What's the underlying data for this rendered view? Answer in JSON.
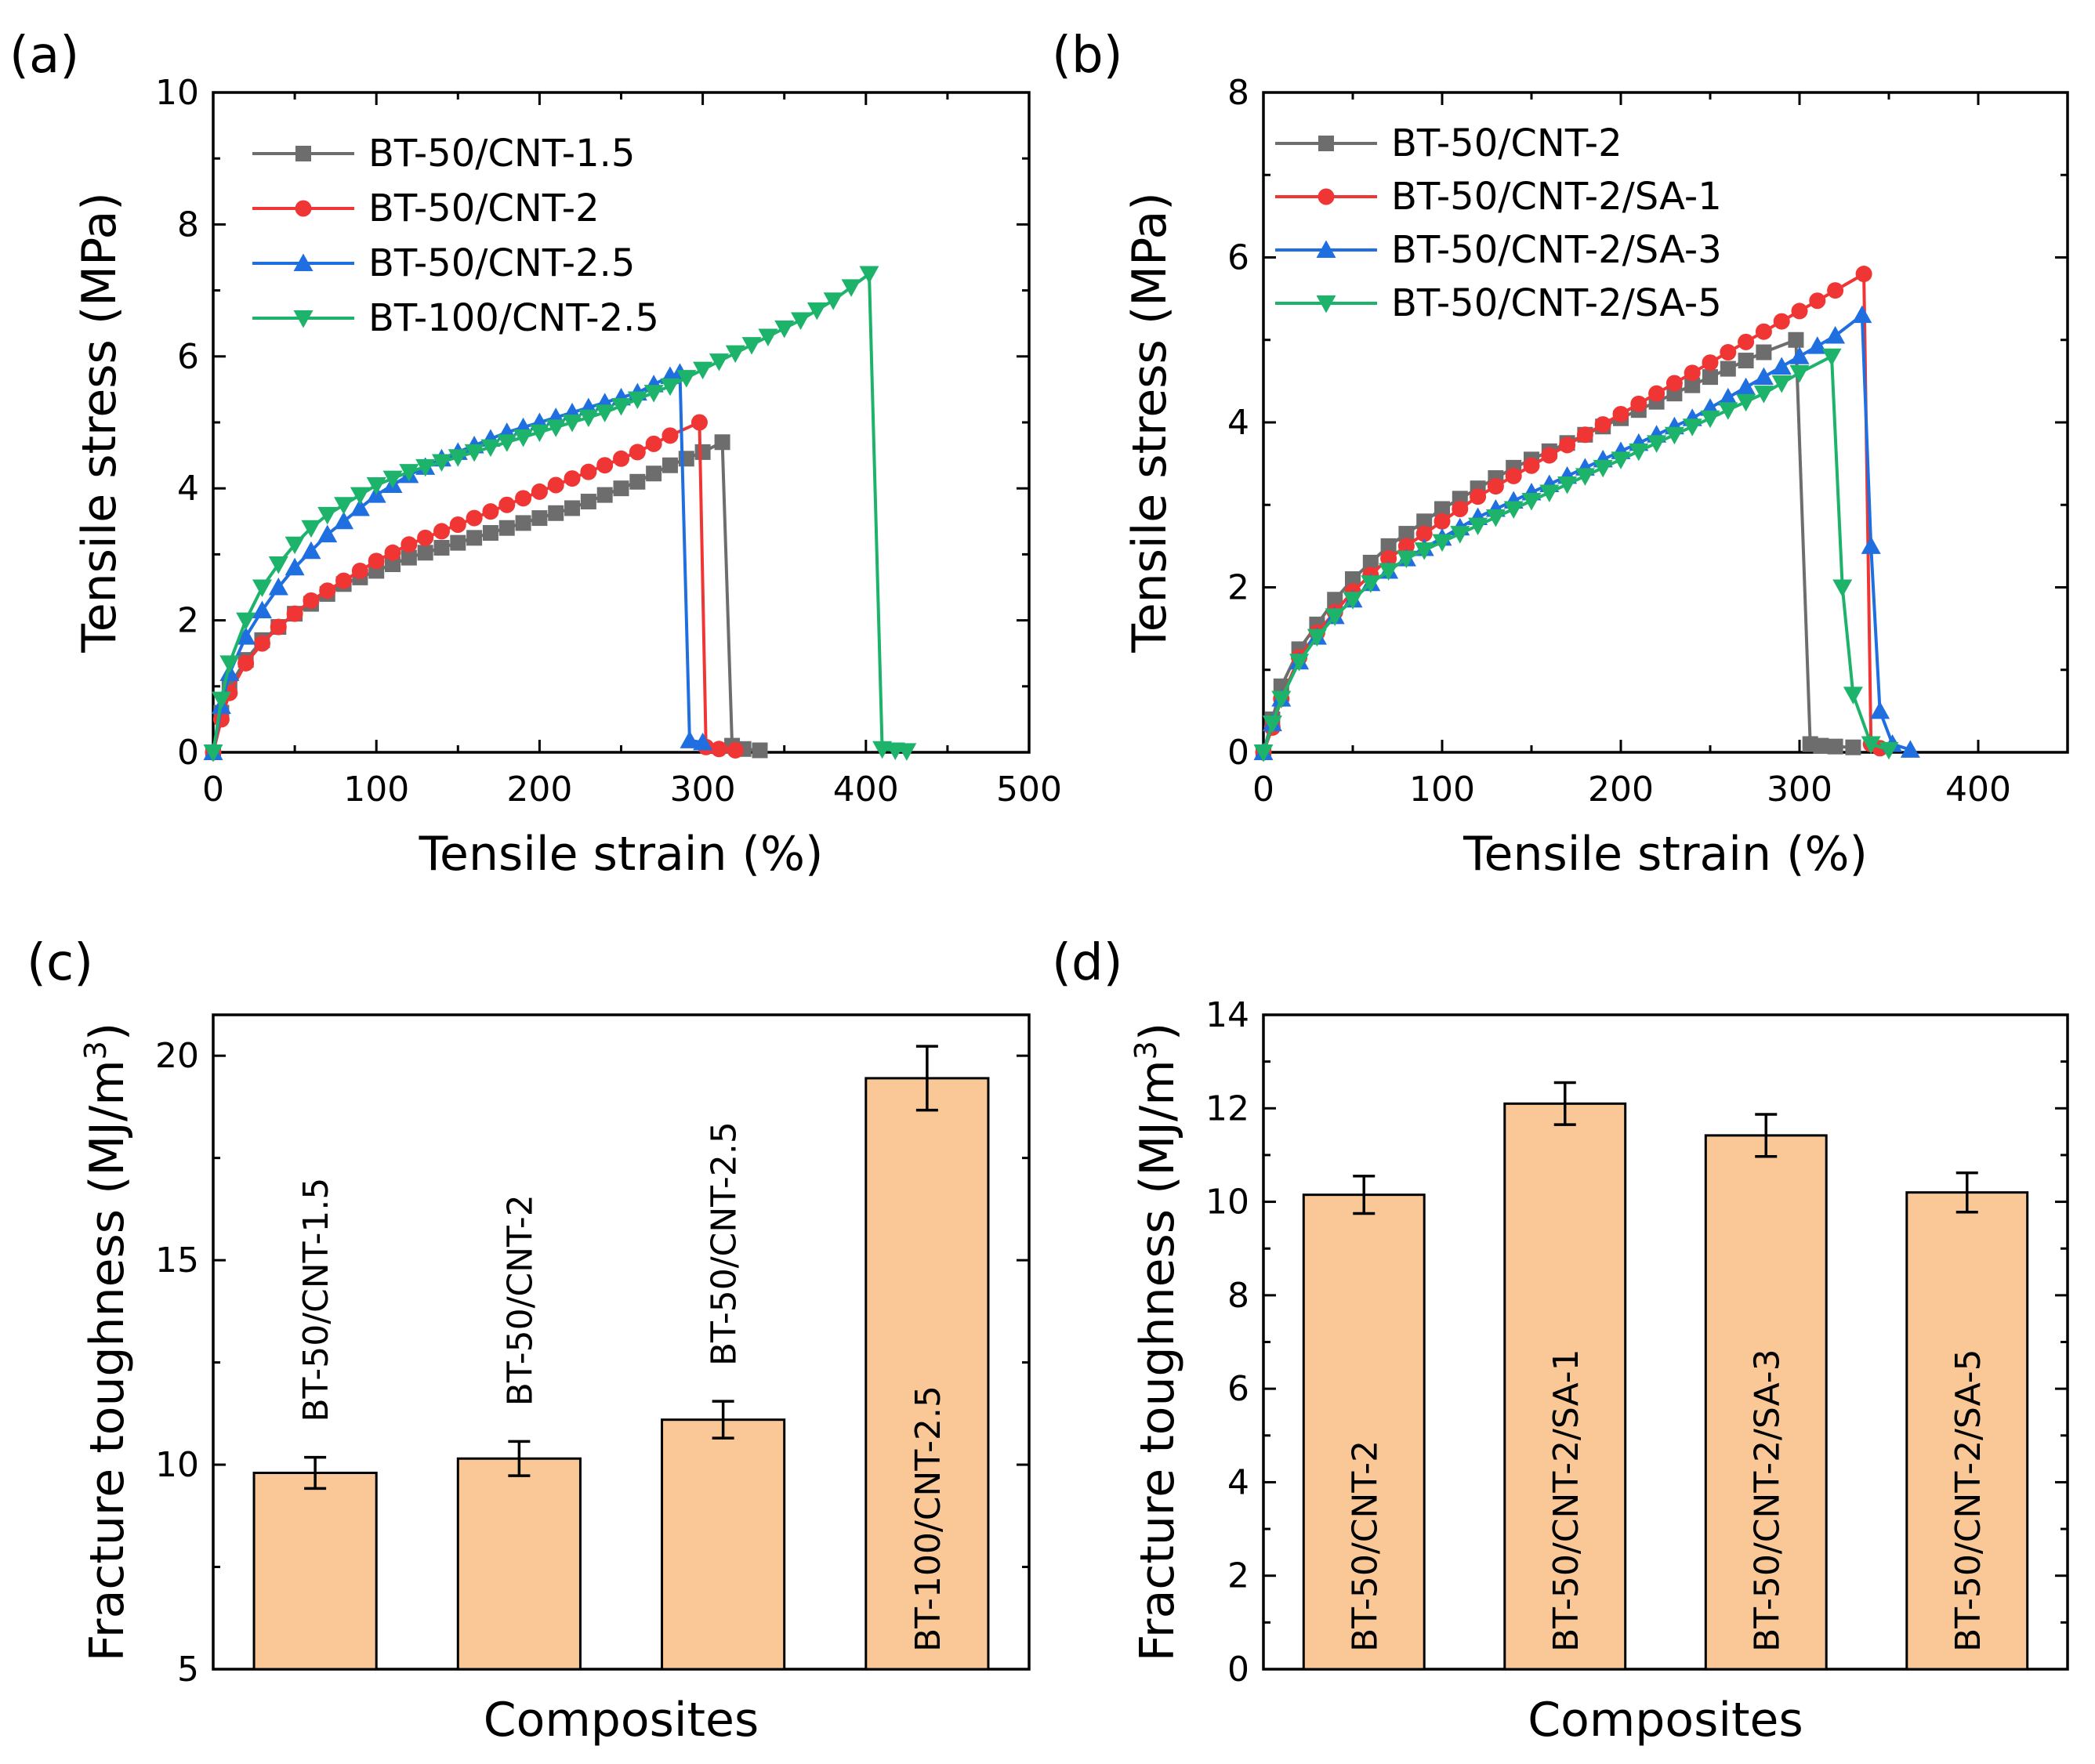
{
  "chart_data": [
    {
      "panel": "(a)",
      "type": "line",
      "xlabel": "Tensile strain (%)",
      "ylabel": "Tensile stress (MPa)",
      "xlim": [
        0,
        500
      ],
      "ylim": [
        0,
        10
      ],
      "xticks": [
        0,
        100,
        200,
        300,
        400,
        500
      ],
      "yticks": [
        0,
        2,
        4,
        6,
        8,
        10
      ],
      "grid": false,
      "legend_position": "top-left",
      "series": [
        {
          "name": "BT-50/CNT-1.5",
          "color": "#6d6d6d",
          "marker": "square",
          "x": [
            0,
            5,
            10,
            20,
            30,
            40,
            50,
            60,
            70,
            80,
            100,
            120,
            140,
            160,
            180,
            200,
            220,
            240,
            260,
            280,
            300,
            312,
            318,
            325,
            335
          ],
          "y": [
            0,
            0.6,
            1.0,
            1.4,
            1.7,
            1.9,
            2.1,
            2.25,
            2.4,
            2.55,
            2.75,
            2.95,
            3.1,
            3.25,
            3.4,
            3.55,
            3.7,
            3.9,
            4.1,
            4.35,
            4.55,
            4.7,
            0.1,
            0.05,
            0.03
          ]
        },
        {
          "name": "BT-50/CNT-2",
          "color": "#f03535",
          "marker": "circle",
          "x": [
            0,
            5,
            10,
            20,
            30,
            40,
            50,
            60,
            70,
            80,
            100,
            120,
            140,
            160,
            180,
            200,
            220,
            240,
            260,
            280,
            298,
            302,
            310,
            320
          ],
          "y": [
            0,
            0.5,
            0.9,
            1.35,
            1.65,
            1.9,
            2.1,
            2.3,
            2.45,
            2.6,
            2.9,
            3.15,
            3.35,
            3.55,
            3.75,
            3.95,
            4.15,
            4.35,
            4.55,
            4.8,
            5.0,
            0.08,
            0.05,
            0.03
          ]
        },
        {
          "name": "BT-50/CNT-2.5",
          "color": "#1f6fe0",
          "marker": "triangle-up",
          "x": [
            0,
            5,
            10,
            20,
            30,
            40,
            50,
            60,
            70,
            80,
            100,
            120,
            140,
            160,
            180,
            200,
            220,
            240,
            260,
            280,
            286,
            292,
            300
          ],
          "y": [
            0,
            0.7,
            1.2,
            1.75,
            2.15,
            2.5,
            2.8,
            3.05,
            3.3,
            3.5,
            3.9,
            4.2,
            4.45,
            4.65,
            4.85,
            5.0,
            5.15,
            5.3,
            5.45,
            5.7,
            5.75,
            0.18,
            0.15
          ]
        },
        {
          "name": "BT-100/CNT-2.5",
          "color": "#1db36b",
          "marker": "triangle-down",
          "x": [
            0,
            5,
            10,
            20,
            30,
            40,
            50,
            60,
            70,
            80,
            100,
            120,
            140,
            160,
            180,
            200,
            220,
            240,
            260,
            280,
            300,
            320,
            340,
            360,
            380,
            402,
            410,
            418,
            425
          ],
          "y": [
            0,
            0.8,
            1.35,
            2.0,
            2.5,
            2.85,
            3.15,
            3.4,
            3.6,
            3.75,
            4.05,
            4.25,
            4.4,
            4.55,
            4.7,
            4.85,
            5.0,
            5.15,
            5.35,
            5.55,
            5.8,
            6.05,
            6.3,
            6.55,
            6.85,
            7.25,
            0.05,
            0.03,
            0.02
          ]
        }
      ]
    },
    {
      "panel": "(b)",
      "type": "line",
      "xlabel": "Tensile strain (%)",
      "ylabel": "Tensile stress (MPa)",
      "xlim": [
        0,
        450
      ],
      "ylim": [
        0,
        8
      ],
      "xticks": [
        0,
        100,
        200,
        300,
        400
      ],
      "yticks": [
        0,
        2,
        4,
        6,
        8
      ],
      "grid": false,
      "legend_position": "top-left",
      "series": [
        {
          "name": "BT-50/CNT-2",
          "color": "#6d6d6d",
          "marker": "square",
          "x": [
            0,
            5,
            10,
            20,
            30,
            40,
            50,
            60,
            70,
            80,
            100,
            120,
            140,
            160,
            180,
            200,
            220,
            240,
            260,
            280,
            298,
            306,
            312,
            320,
            330
          ],
          "y": [
            0,
            0.4,
            0.8,
            1.25,
            1.55,
            1.85,
            2.1,
            2.3,
            2.5,
            2.65,
            2.95,
            3.2,
            3.45,
            3.65,
            3.85,
            4.05,
            4.25,
            4.45,
            4.65,
            4.85,
            5.0,
            0.1,
            0.08,
            0.07,
            0.06
          ]
        },
        {
          "name": "BT-50/CNT-2/SA-1",
          "color": "#f03535",
          "marker": "circle",
          "x": [
            0,
            5,
            10,
            20,
            30,
            40,
            50,
            60,
            70,
            80,
            100,
            120,
            140,
            160,
            180,
            200,
            220,
            240,
            260,
            280,
            300,
            320,
            336,
            340,
            345
          ],
          "y": [
            0,
            0.3,
            0.65,
            1.15,
            1.45,
            1.7,
            1.95,
            2.15,
            2.35,
            2.5,
            2.8,
            3.1,
            3.35,
            3.6,
            3.85,
            4.1,
            4.35,
            4.6,
            4.85,
            5.1,
            5.35,
            5.6,
            5.8,
            0.1,
            0.05
          ]
        },
        {
          "name": "BT-50/CNT-2/SA-3",
          "color": "#1f6fe0",
          "marker": "triangle-up",
          "x": [
            0,
            5,
            10,
            20,
            30,
            40,
            50,
            60,
            70,
            80,
            100,
            120,
            140,
            160,
            180,
            200,
            220,
            240,
            260,
            280,
            300,
            320,
            335,
            340,
            345,
            352,
            362
          ],
          "y": [
            0,
            0.35,
            0.65,
            1.1,
            1.4,
            1.65,
            1.85,
            2.05,
            2.2,
            2.35,
            2.6,
            2.85,
            3.05,
            3.25,
            3.45,
            3.65,
            3.85,
            4.05,
            4.3,
            4.55,
            4.8,
            5.05,
            5.3,
            2.5,
            0.5,
            0.1,
            0.03
          ]
        },
        {
          "name": "BT-50/CNT-2/SA-5",
          "color": "#1db36b",
          "marker": "triangle-down",
          "x": [
            0,
            5,
            10,
            20,
            30,
            40,
            50,
            60,
            70,
            80,
            100,
            120,
            140,
            160,
            180,
            200,
            220,
            240,
            260,
            280,
            300,
            318,
            324,
            330,
            340,
            350
          ],
          "y": [
            0,
            0.35,
            0.65,
            1.1,
            1.4,
            1.65,
            1.85,
            2.05,
            2.2,
            2.35,
            2.55,
            2.75,
            2.95,
            3.15,
            3.35,
            3.55,
            3.75,
            3.95,
            4.15,
            4.35,
            4.6,
            4.8,
            2.0,
            0.7,
            0.1,
            0.03
          ]
        }
      ]
    },
    {
      "panel": "(c)",
      "type": "bar",
      "xlabel": "Composites",
      "ylabel": "Fracture toughness (MJ/m",
      "ylabel_sup": "3",
      "ylabel_end": ")",
      "ylim": [
        5,
        21
      ],
      "yticks": [
        5,
        10,
        15,
        20
      ],
      "bar_color": "#fac897",
      "categories": [
        "BT-50/CNT-1.5",
        "BT-50/CNT-2",
        "BT-50/CNT-2.5",
        "BT-100/CNT-2.5"
      ],
      "values": [
        9.8,
        10.15,
        11.1,
        19.45
      ],
      "errors": [
        0.38,
        0.42,
        0.45,
        0.78
      ],
      "label_inside": [
        false,
        false,
        false,
        true
      ]
    },
    {
      "panel": "(d)",
      "type": "bar",
      "xlabel": "Composites",
      "ylabel": "Fracture toughness (MJ/m",
      "ylabel_sup": "3",
      "ylabel_end": ")",
      "ylim": [
        0,
        14
      ],
      "yticks": [
        0,
        2,
        4,
        6,
        8,
        10,
        12,
        14
      ],
      "bar_color": "#fac897",
      "categories": [
        "BT-50/CNT-2",
        "BT-50/CNT-2/SA-1",
        "BT-50/CNT-2/SA-3",
        "BT-50/CNT-2/SA-5"
      ],
      "values": [
        10.15,
        12.1,
        11.42,
        10.2
      ],
      "errors": [
        0.4,
        0.45,
        0.45,
        0.42
      ],
      "label_inside": [
        true,
        true,
        true,
        true
      ]
    }
  ]
}
